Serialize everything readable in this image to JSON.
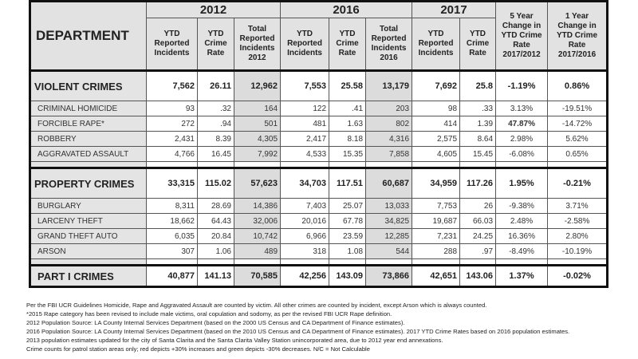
{
  "header": {
    "department": "DEPARTMENT",
    "years": [
      "2012",
      "2016",
      "2017"
    ],
    "cols2012": [
      "YTD Reported Incidents",
      "YTD Crime Rate",
      "Total Reported Incidents 2012"
    ],
    "cols2016": [
      "YTD Reported Incidents",
      "YTD Crime Rate",
      "Total Reported Incidents 2016"
    ],
    "cols2017": [
      "YTD Reported Incidents",
      "YTD Crime Rate"
    ],
    "five_year": "5 Year Change in YTD Crime Rate 2017/2012",
    "one_year": "1 Year Change in YTD Crime Rate 2017/2016"
  },
  "rows": [
    {
      "name": "VIOLENT CRIMES",
      "type": "major",
      "v": [
        "7,562",
        "26.11",
        "12,962",
        "7,553",
        "25.58",
        "13,179",
        "7,692",
        "25.8",
        "-1.19%",
        "0.86%"
      ]
    },
    {
      "name": "CRIMINAL HOMICIDE",
      "type": "minor",
      "v": [
        "93",
        ".32",
        "164",
        "122",
        ".41",
        "203",
        "98",
        ".33",
        "3.13%",
        "-19.51%"
      ]
    },
    {
      "name": "FORCIBLE RAPE*",
      "type": "minor",
      "v": [
        "272",
        ".94",
        "501",
        "481",
        "1.63",
        "802",
        "414",
        "1.39",
        "47.87%",
        "-14.72%"
      ]
    },
    {
      "name": "ROBBERY",
      "type": "minor",
      "v": [
        "2,431",
        "8.39",
        "4,305",
        "2,417",
        "8.18",
        "4,316",
        "2,575",
        "8.64",
        "2.98%",
        "5.62%"
      ]
    },
    {
      "name": "AGGRAVATED ASSAULT",
      "type": "minor",
      "v": [
        "4,766",
        "16.45",
        "7,992",
        "4,533",
        "15.35",
        "7,858",
        "4,605",
        "15.45",
        "-6.08%",
        "0.65%"
      ]
    },
    {
      "name": "PROPERTY CRIMES",
      "type": "major",
      "v": [
        "33,315",
        "115.02",
        "57,623",
        "34,703",
        "117.51",
        "60,687",
        "34,959",
        "117.26",
        "1.95%",
        "-0.21%"
      ]
    },
    {
      "name": "BURGLARY",
      "type": "minor",
      "v": [
        "8,311",
        "28.69",
        "14,386",
        "7,403",
        "25.07",
        "13,033",
        "7,753",
        "26",
        "-9.38%",
        "3.71%"
      ]
    },
    {
      "name": "LARCENY THEFT",
      "type": "minor",
      "v": [
        "18,662",
        "64.43",
        "32,006",
        "20,016",
        "67.78",
        "34,825",
        "19,687",
        "66.03",
        "2.48%",
        "-2.58%"
      ]
    },
    {
      "name": "GRAND THEFT AUTO",
      "type": "minor",
      "v": [
        "6,035",
        "20.84",
        "10,742",
        "6,966",
        "23.59",
        "12,285",
        "7,231",
        "24.25",
        "16.36%",
        "2.80%"
      ]
    },
    {
      "name": "ARSON",
      "type": "minor",
      "v": [
        "307",
        "1.06",
        "489",
        "318",
        "1.08",
        "544",
        "288",
        ".97",
        "-8.49%",
        "-10.19%"
      ]
    },
    {
      "name": "PART I CRIMES",
      "type": "part",
      "v": [
        "40,877",
        "141.13",
        "70,585",
        "42,256",
        "143.09",
        "73,866",
        "42,651",
        "143.06",
        "1.37%",
        "-0.02%"
      ]
    }
  ],
  "highlight_color": "#d0393f",
  "notes": [
    "Per the FBI UCR Guidelines Homicide, Rape and Aggravated Assault are counted by victim. All other crimes are counted by incident, except Arson which is always counted.",
    "*2015 Rape category has been revised to include male victims, oral copulation and sodomy, as per the revised FBI UCR Rape definition.",
    "2012 Population Source: LA County Internal Services Department (based on the 2000 US Census and CA Department of Finance estimates).",
    "2016 Population Source: LA County Internal Services Department (based on the 2010 US Census and CA Department of Finance estimates).  2017 YTD Crime Rates based on 2016 population estimates.",
    "2013 population estimates updated for the city of Santa Clarita and the Santa Clarita Valley Station unincorporated area, due to 2012 year end annexations.",
    "Crime counts for patrol station areas only; red depicts +30% increases and green depicts -30% decreases. N/C = Not Calculable"
  ]
}
